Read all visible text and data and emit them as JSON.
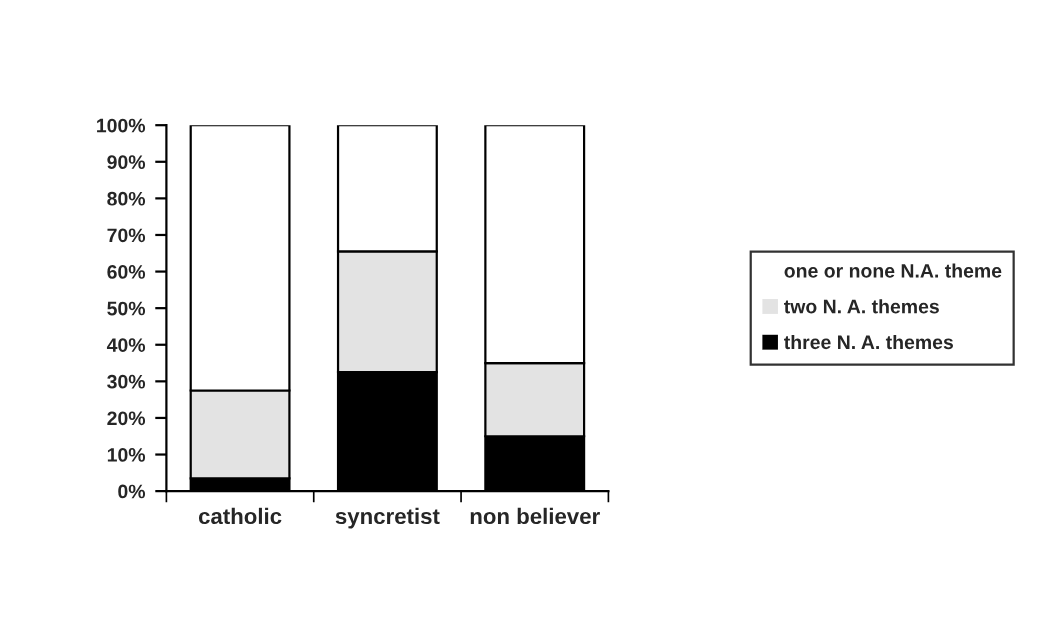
{
  "chart_data": {
    "type": "bar",
    "stacked": true,
    "categories": [
      "catholic",
      "syncretist",
      "non believer"
    ],
    "series": [
      {
        "name": "three N. A. themes",
        "color": "#000000",
        "values": [
          3.5,
          32.5,
          15
        ]
      },
      {
        "name": "two N. A. themes",
        "color": "#e3e3e3",
        "values": [
          24,
          33,
          20
        ]
      },
      {
        "name": "one or none N.A. theme",
        "color": "#ffffff",
        "values": [
          72.5,
          34.5,
          65
        ]
      }
    ],
    "ylim": [
      0,
      100
    ],
    "yticks": [
      {
        "value": 0,
        "label": "0%"
      },
      {
        "value": 10,
        "label": "10%"
      },
      {
        "value": 20,
        "label": "20%"
      },
      {
        "value": 30,
        "label": "30%"
      },
      {
        "value": 40,
        "label": "40%"
      },
      {
        "value": 50,
        "label": "50%"
      },
      {
        "value": 60,
        "label": "60%"
      },
      {
        "value": 70,
        "label": "70%"
      },
      {
        "value": 80,
        "label": "80%"
      },
      {
        "value": 90,
        "label": "90%"
      },
      {
        "value": 100,
        "label": "100%"
      }
    ],
    "grid": false,
    "legend": "right"
  }
}
